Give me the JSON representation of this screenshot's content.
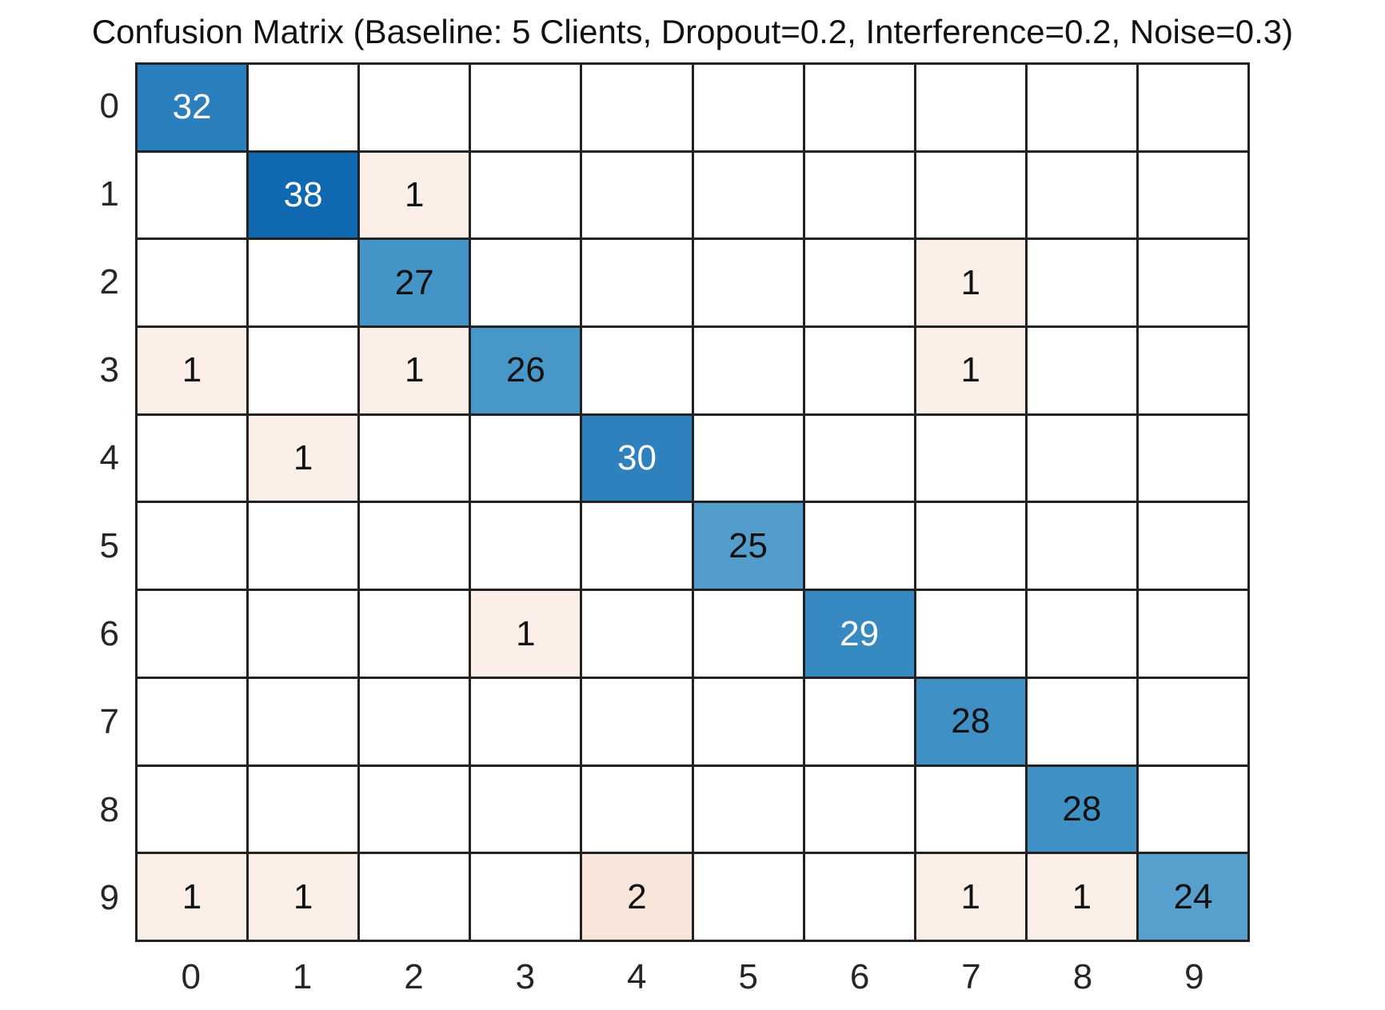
{
  "chart_data": {
    "type": "heatmap",
    "title": "Confusion Matrix (Baseline: 5 Clients, Dropout=0.2, Interference=0.2, Noise=0.3)",
    "x_tick_labels": [
      "0",
      "1",
      "2",
      "3",
      "4",
      "5",
      "6",
      "7",
      "8",
      "9"
    ],
    "y_tick_labels": [
      "0",
      "1",
      "2",
      "3",
      "4",
      "5",
      "6",
      "7",
      "8",
      "9"
    ],
    "matrix": [
      [
        32,
        0,
        0,
        0,
        0,
        0,
        0,
        0,
        0,
        0
      ],
      [
        0,
        38,
        1,
        0,
        0,
        0,
        0,
        0,
        0,
        0
      ],
      [
        0,
        0,
        27,
        0,
        0,
        0,
        0,
        1,
        0,
        0
      ],
      [
        1,
        0,
        1,
        26,
        0,
        0,
        0,
        1,
        0,
        0
      ],
      [
        0,
        1,
        0,
        0,
        30,
        0,
        0,
        0,
        0,
        0
      ],
      [
        0,
        0,
        0,
        0,
        0,
        25,
        0,
        0,
        0,
        0
      ],
      [
        0,
        0,
        0,
        1,
        0,
        0,
        29,
        0,
        0,
        0
      ],
      [
        0,
        0,
        0,
        0,
        0,
        0,
        0,
        28,
        0,
        0
      ],
      [
        0,
        0,
        0,
        0,
        0,
        0,
        0,
        0,
        28,
        0
      ],
      [
        1,
        1,
        0,
        0,
        2,
        0,
        0,
        1,
        1,
        24
      ]
    ],
    "hide_zeros": true,
    "value_styles": {
      "0": {
        "bg": "#ffffff",
        "fg": "#111111"
      },
      "1": {
        "bg": "#fcefe7",
        "fg": "#111111"
      },
      "2": {
        "bg": "#f8e5d9",
        "fg": "#111111"
      },
      "24": {
        "bg": "#57a0ce",
        "fg": "#111111"
      },
      "25": {
        "bg": "#529dcc",
        "fg": "#111111"
      },
      "26": {
        "bg": "#4897c9",
        "fg": "#111111"
      },
      "27": {
        "bg": "#4594c7",
        "fg": "#111111"
      },
      "28": {
        "bg": "#3f90c5",
        "fg": "#111111"
      },
      "29": {
        "bg": "#3789c1",
        "fg": "#ffffff"
      },
      "30": {
        "bg": "#2e81bd",
        "fg": "#ffffff"
      },
      "32": {
        "bg": "#2b7fbc",
        "fg": "#ffffff"
      },
      "38": {
        "bg": "#1069b0",
        "fg": "#ffffff"
      }
    },
    "grid_line_color": "#222222",
    "background_color": "#ffffff",
    "rows": 10,
    "cols": 10,
    "legend": "none",
    "grid": "on",
    "xlabel": "",
    "ylabel": ""
  }
}
